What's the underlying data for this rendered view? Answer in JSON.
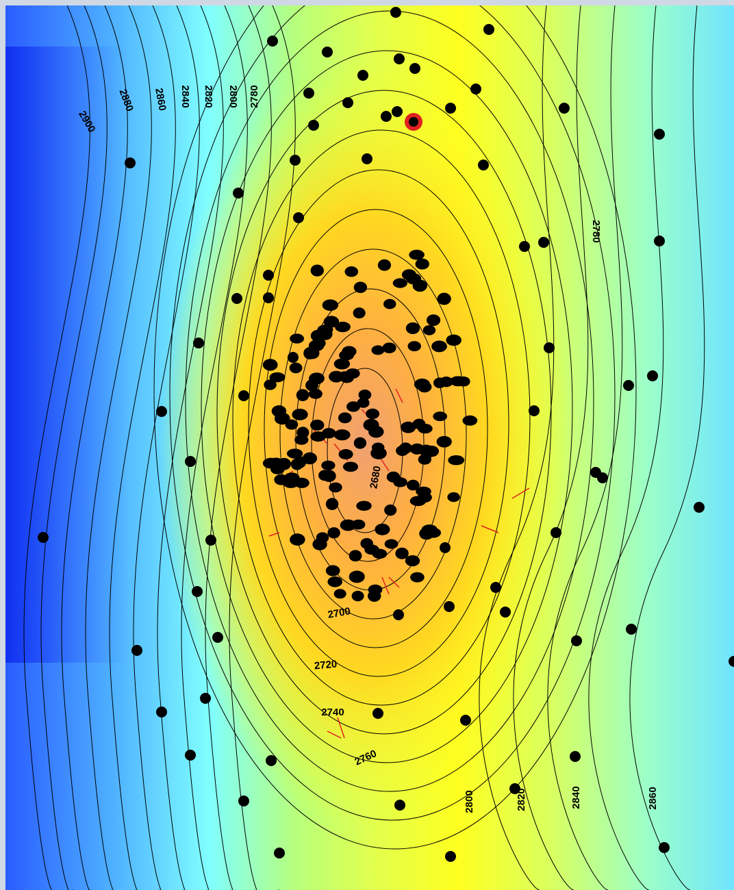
{
  "map": {
    "type": "structure-contour-map",
    "contour_interval": 10,
    "label_interval": 20,
    "min_value": 2670,
    "max_value": 2910,
    "crest_depth": 2670,
    "colors": {
      "low": "#f09670",
      "mid_low": "#ffa650",
      "mid": "#ffff00",
      "mid_high": "#b8ff7a",
      "high": "#80ffff",
      "deep": "#2040ff",
      "contour_line": "#000000",
      "well": "#000000",
      "highlight_ring": "#e02020",
      "trajectory": "#e02020"
    },
    "contour_labels": [
      "2900",
      "2880",
      "2860",
      "2840",
      "2820",
      "2800",
      "2780",
      "2780",
      "2680",
      "2700",
      "2720",
      "2740",
      "2760",
      "2800",
      "2820",
      "2840",
      "2860"
    ],
    "highlighted_well": {
      "name": "selected-well",
      "marker": "red-ring"
    }
  }
}
